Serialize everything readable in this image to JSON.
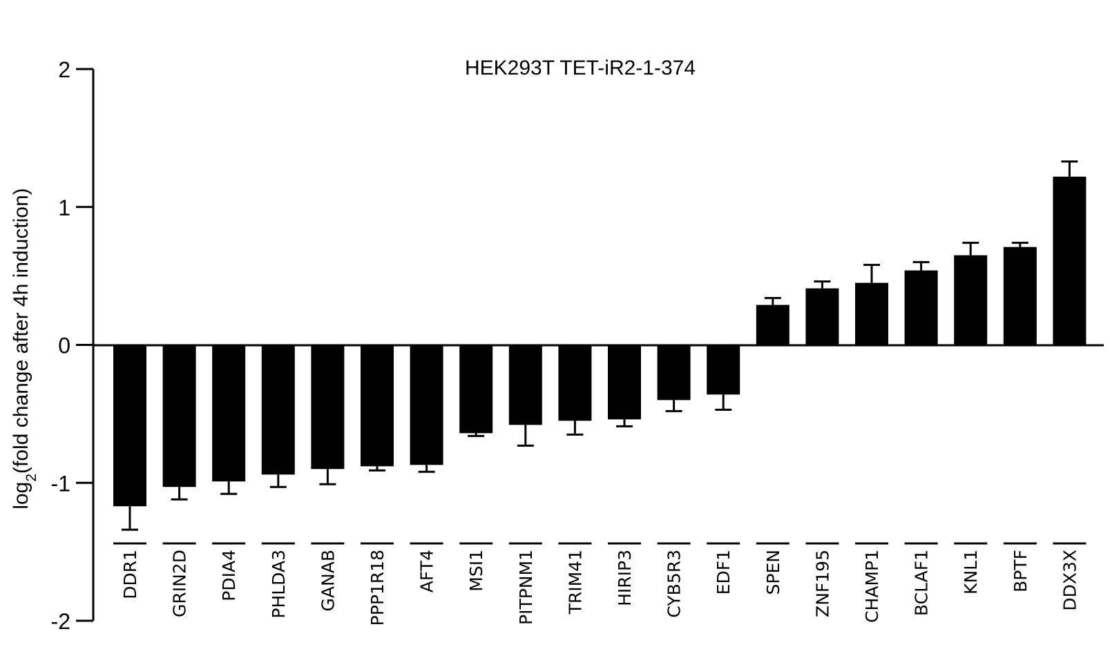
{
  "chart_data": {
    "type": "bar",
    "title": "HEK293T TET-iR2-1-374",
    "ylabel_prefix": "log",
    "ylabel_sub": "2",
    "ylabel_suffix": "(fold change after 4h induction)",
    "ylim": [
      -2,
      2
    ],
    "yticks": [
      2,
      1,
      0,
      -1,
      -2
    ],
    "grid": false,
    "legend": "none",
    "bar_color": "#000000",
    "categories": [
      "DDR1",
      "GRIN2D",
      "PDIA4",
      "PHLDA3",
      "GANAB",
      "PPP1R18",
      "AFT4",
      "MSI1",
      "PITPNM1",
      "TRIM41",
      "HIRIP3",
      "CYB5R3",
      "EDF1",
      "SPEN",
      "ZNF195",
      "CHAMP1",
      "BCLAF1",
      "KNL1",
      "BPTF",
      "DDX3X"
    ],
    "values": [
      -1.17,
      -1.03,
      -0.99,
      -0.94,
      -0.9,
      -0.88,
      -0.87,
      -0.64,
      -0.58,
      -0.55,
      -0.54,
      -0.4,
      -0.36,
      0.29,
      0.41,
      0.45,
      0.54,
      0.65,
      0.71,
      1.22
    ],
    "errors": [
      0.17,
      0.09,
      0.09,
      0.09,
      0.11,
      0.03,
      0.05,
      0.02,
      0.15,
      0.1,
      0.05,
      0.08,
      0.11,
      0.05,
      0.05,
      0.13,
      0.06,
      0.09,
      0.03,
      0.11
    ]
  }
}
